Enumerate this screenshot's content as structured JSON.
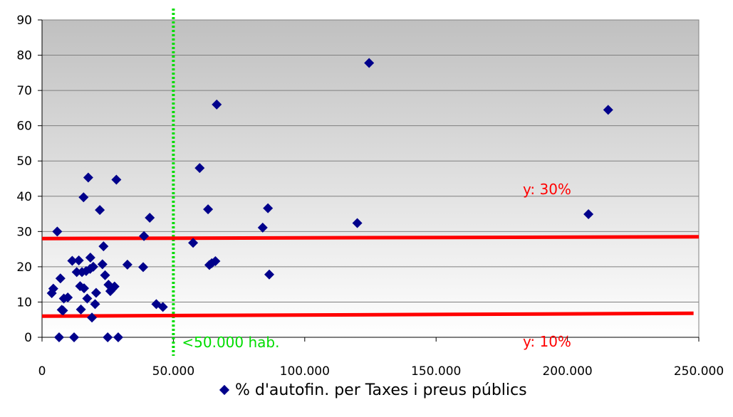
{
  "chart_data": {
    "type": "scatter",
    "title": "",
    "xlabel": "",
    "ylabel": "",
    "xlim": [
      0,
      250000
    ],
    "ylim": [
      0,
      90
    ],
    "x_ticks": [
      0,
      50000,
      100000,
      150000,
      200000,
      250000
    ],
    "x_tick_labels": [
      "0",
      "50.000",
      "100.000",
      "150.000",
      "200.000",
      "250.000"
    ],
    "y_ticks": [
      0,
      10,
      20,
      30,
      40,
      50,
      60,
      70,
      80,
      90
    ],
    "y_tick_labels": [
      "0",
      "10",
      "20",
      "30",
      "40",
      "50",
      "60",
      "70",
      "80",
      "90"
    ],
    "grid": "horizontal",
    "background": "gradient-gray",
    "legend_position": "bottom",
    "series": [
      {
        "name": "% d'autofin. per Taxes i preus públics",
        "color": "#00008b",
        "marker": "diamond",
        "points": [
          [
            3700,
            12.5
          ],
          [
            4300,
            13.8
          ],
          [
            5800,
            30
          ],
          [
            6500,
            0
          ],
          [
            7000,
            16.7
          ],
          [
            7500,
            7.8
          ],
          [
            8000,
            7.6
          ],
          [
            8300,
            11
          ],
          [
            9800,
            11.3
          ],
          [
            11500,
            21.7
          ],
          [
            12200,
            0
          ],
          [
            13200,
            18.5
          ],
          [
            14000,
            21.8
          ],
          [
            14500,
            14.5
          ],
          [
            14800,
            7.9
          ],
          [
            15200,
            18.5
          ],
          [
            15800,
            39.7
          ],
          [
            16000,
            13.9
          ],
          [
            16800,
            18.8
          ],
          [
            17200,
            11
          ],
          [
            17600,
            45.3
          ],
          [
            18300,
            19.4
          ],
          [
            18400,
            22.6
          ],
          [
            19000,
            5.6
          ],
          [
            19500,
            20
          ],
          [
            20200,
            9.4
          ],
          [
            20600,
            12.6
          ],
          [
            22000,
            36.1
          ],
          [
            23000,
            20.7
          ],
          [
            23400,
            25.8
          ],
          [
            24000,
            17.6
          ],
          [
            25000,
            0
          ],
          [
            25300,
            14.9
          ],
          [
            26000,
            13.1
          ],
          [
            26700,
            13.7
          ],
          [
            27600,
            14.4
          ],
          [
            28300,
            44.7
          ],
          [
            29000,
            0
          ],
          [
            32500,
            20.6
          ],
          [
            38500,
            19.9
          ],
          [
            38800,
            28.7
          ],
          [
            41000,
            33.9
          ],
          [
            43500,
            9.4
          ],
          [
            46000,
            8.6
          ],
          [
            57500,
            26.8
          ],
          [
            60000,
            48
          ],
          [
            63200,
            36.3
          ],
          [
            63700,
            20.5
          ],
          [
            64600,
            21
          ],
          [
            66000,
            21.6
          ],
          [
            66500,
            66
          ],
          [
            84000,
            31.1
          ],
          [
            86000,
            36.6
          ],
          [
            86500,
            17.8
          ],
          [
            120000,
            32.4
          ],
          [
            124500,
            77.8
          ],
          [
            208000,
            34.9
          ],
          [
            215500,
            64.5
          ]
        ]
      }
    ],
    "reference_lines": [
      {
        "kind": "vertical",
        "x": 50000,
        "color": "#00dd00",
        "style": "dotted",
        "label": "<50.000 hab."
      },
      {
        "kind": "trend",
        "from": [
          0,
          28
        ],
        "to": [
          250000,
          28.5
        ],
        "color": "#ff0000",
        "label": "y: 30%"
      },
      {
        "kind": "trend",
        "from": [
          0,
          6
        ],
        "to": [
          248000,
          6.8
        ],
        "color": "#ff0000",
        "label": "y: 10%"
      }
    ]
  }
}
